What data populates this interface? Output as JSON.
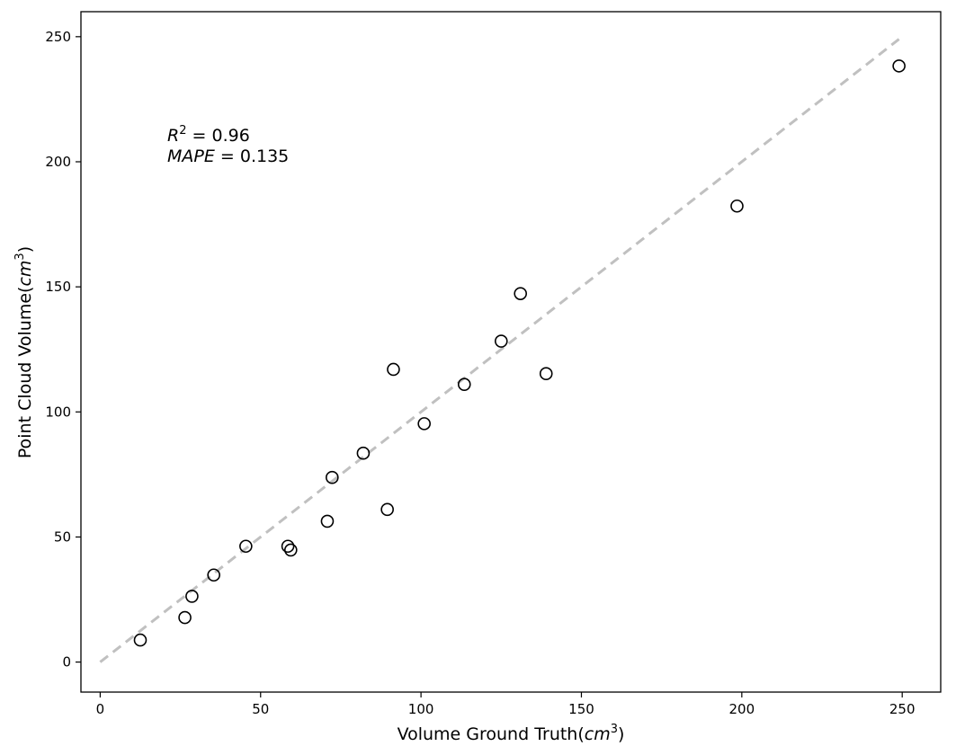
{
  "chart_data": {
    "type": "scatter",
    "xlabel": "Volume Ground Truth(",
    "xlabel_unit": "cm",
    "xlabel_exp": "3",
    "xlabel_close": ")",
    "ylabel": "Point Cloud Volume(",
    "ylabel_unit": "cm",
    "ylabel_exp": "3",
    "ylabel_close": ")",
    "xlim": [
      -6,
      262
    ],
    "ylim": [
      -12,
      260
    ],
    "xticks": [
      0,
      50,
      100,
      150,
      200,
      250
    ],
    "yticks": [
      0,
      50,
      100,
      150,
      200,
      250
    ],
    "grid": false,
    "reference_line": {
      "style": "dashed",
      "color": "#c0c0c0",
      "from": [
        0,
        0
      ],
      "to": [
        249,
        249
      ]
    },
    "marker_color": "#000000",
    "annotations": {
      "r2_symbol": "R",
      "r2_exp": "2",
      "r2_value": " = 0.96",
      "mape_symbol": "MAPE",
      "mape_value": " = 0.135"
    },
    "points": [
      {
        "x": 12.5,
        "y": 8.8
      },
      {
        "x": 26.4,
        "y": 17.8
      },
      {
        "x": 28.6,
        "y": 26.3
      },
      {
        "x": 35.4,
        "y": 34.8
      },
      {
        "x": 45.4,
        "y": 46.3
      },
      {
        "x": 58.5,
        "y": 46.3
      },
      {
        "x": 59.4,
        "y": 44.8
      },
      {
        "x": 70.8,
        "y": 56.3
      },
      {
        "x": 72.3,
        "y": 73.8
      },
      {
        "x": 82.0,
        "y": 83.5
      },
      {
        "x": 89.5,
        "y": 61.0
      },
      {
        "x": 91.4,
        "y": 117.0
      },
      {
        "x": 101.0,
        "y": 95.3
      },
      {
        "x": 113.5,
        "y": 111.0
      },
      {
        "x": 125.0,
        "y": 128.3
      },
      {
        "x": 131.0,
        "y": 147.3
      },
      {
        "x": 139.0,
        "y": 115.3
      },
      {
        "x": 198.5,
        "y": 182.3
      },
      {
        "x": 249.0,
        "y": 238.3
      }
    ]
  }
}
